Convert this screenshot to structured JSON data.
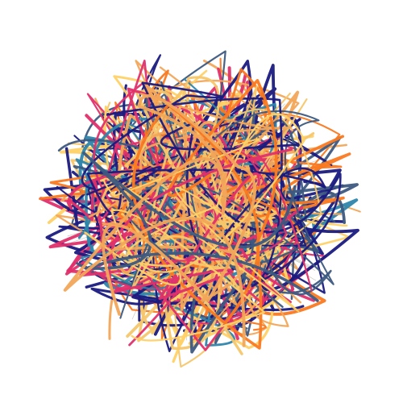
{
  "artwork": {
    "background": "#ffffff",
    "palette": [
      "#1a1a80",
      "#f2a65a",
      "#f5c66b",
      "#2e86ab",
      "#fa7921",
      "#e0306b",
      "#ffd166",
      "#3d5a80"
    ],
    "spoke_color": "#b8bfb0",
    "strand_count": 90,
    "spoke_count": 120
  }
}
